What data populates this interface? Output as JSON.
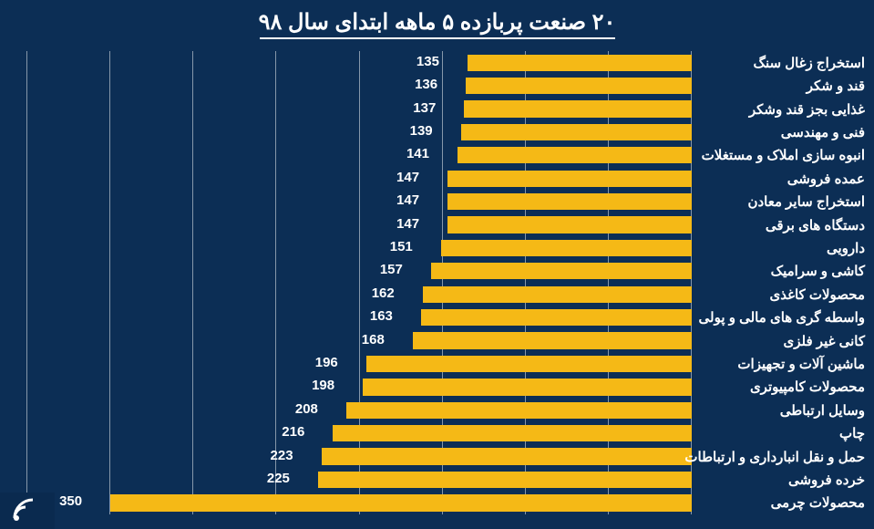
{
  "chart": {
    "type": "bar-horizontal",
    "title": "۲۰ صنعت پربازده ۵ ماهه ابتدای سال ۹۸",
    "title_fontsize": 24,
    "title_color": "#ffffff",
    "background_color": "#0c2e55",
    "bar_color": "#f5b916",
    "label_color": "#ffffff",
    "value_color": "#ffffff",
    "label_fontsize": 15,
    "value_fontsize": 15,
    "font_weight_title": "bold",
    "font_weight_label": "600",
    "font_weight_value": "bold",
    "grid_color": "rgba(255,255,255,0.5)",
    "xlim": [
      0,
      400
    ],
    "xtick_step": 50,
    "bar_height_pct": 72,
    "categories": [
      "استخراج زغال سنگ",
      "قند و شکر",
      "غذایی بجز قند وشکر",
      "فنی و مهندسی",
      "انبوه سازی املاک و مستغلات",
      "عمده فروشی",
      "استخراج سایر معادن",
      "دستگاه های برقی",
      "دارویی",
      "کاشی و سرامیک",
      "محصولات کاغذی",
      "واسطه گری های مالی و پولی",
      "کانی غیر فلزی",
      "ماشین آلات و تجهیزات",
      "محصولات کامپیوتری",
      "وسایل ارتباطی",
      "چاپ",
      "حمل و نقل انبارداری و ارتباطات",
      "خرده فروشی",
      "محصولات چرمی"
    ],
    "values": [
      135,
      136,
      137,
      139,
      141,
      147,
      147,
      147,
      151,
      157,
      162,
      163,
      168,
      196,
      198,
      208,
      216,
      223,
      225,
      350
    ]
  }
}
